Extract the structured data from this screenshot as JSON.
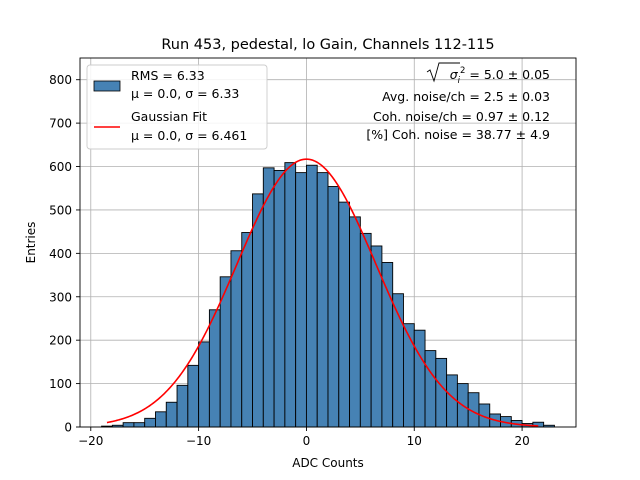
{
  "chart_data": {
    "type": "bar",
    "title": "Run 453, pedestal, lo Gain, Channels 112-115",
    "xlabel": "ADC Counts",
    "ylabel": "Entries",
    "xlim": [
      -21,
      25
    ],
    "ylim": [
      0,
      850
    ],
    "xticks": [
      -20,
      -10,
      0,
      10,
      20
    ],
    "yticks": [
      0,
      100,
      200,
      300,
      400,
      500,
      600,
      700,
      800
    ],
    "grid": true,
    "legend_placement": "top-left",
    "bin_width": 1,
    "bin_starts": [
      -19,
      -18,
      -17,
      -16,
      -15,
      -14,
      -13,
      -12,
      -11,
      -10,
      -9,
      -8,
      -7,
      -6,
      -5,
      -4,
      -3,
      -2,
      -1,
      0,
      1,
      2,
      3,
      4,
      5,
      6,
      7,
      8,
      9,
      10,
      11,
      12,
      13,
      14,
      15,
      16,
      17,
      18,
      19,
      20,
      21,
      22
    ],
    "values": [
      2,
      4,
      10,
      10,
      20,
      35,
      57,
      96,
      142,
      196,
      270,
      346,
      406,
      448,
      537,
      597,
      591,
      609,
      586,
      603,
      586,
      554,
      518,
      484,
      446,
      417,
      379,
      307,
      238,
      223,
      176,
      158,
      120,
      100,
      79,
      53,
      30,
      24,
      15,
      8,
      11,
      4
    ],
    "series": [
      {
        "name": "RMS = 6.33",
        "name_line2": "μ = 0.0, σ = 6.33",
        "kind": "histogram",
        "color": "#4682b4",
        "edge_color": "#000000"
      },
      {
        "name": "Gaussian Fit",
        "name_line2": "μ = 0.0, σ = 6.461",
        "kind": "line",
        "color": "#ff0000",
        "mu": 0.0,
        "sigma": 6.461,
        "amplitude": 617,
        "x_range": [
          -18.5,
          21.5
        ]
      }
    ],
    "annotations": [
      {
        "id": "sigma",
        "prefix": "σ",
        "sub": "i",
        "sup": "2",
        "text": " = 5.0 ± 0.05"
      },
      {
        "id": "avg",
        "text": "Avg. noise/ch = 2.5 ± 0.03"
      },
      {
        "id": "coh",
        "text": "Coh. noise/ch = 0.97 ± 0.12"
      },
      {
        "id": "pct",
        "text": "[%] Coh. noise = 38.77 ± 4.9"
      }
    ]
  }
}
